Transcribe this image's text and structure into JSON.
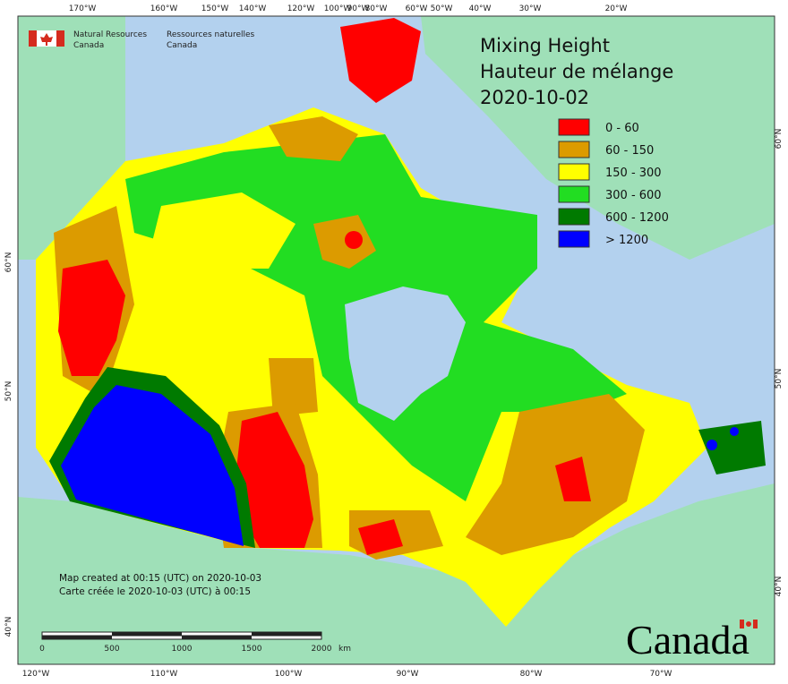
{
  "header": {
    "agency_en": [
      "Natural Resources",
      "Canada"
    ],
    "agency_fr": [
      "Ressources naturelles",
      "Canada"
    ]
  },
  "title": [
    "Mixing Height",
    "Hauteur de mélange",
    "2020-10-02"
  ],
  "legend": {
    "items": [
      {
        "label": "0 - 60",
        "color": "#ff0000"
      },
      {
        "label": "60 - 150",
        "color": "#dc9b00"
      },
      {
        "label": "150 - 300",
        "color": "#ffff00"
      },
      {
        "label": "300 - 600",
        "color": "#22dd22"
      },
      {
        "label": "600 - 1200",
        "color": "#007a00"
      },
      {
        "label": "> 1200",
        "color": "#0000ff"
      }
    ]
  },
  "axes": {
    "top": [
      "170°W",
      "160°W",
      "150°W",
      "140°W",
      "120°W",
      "100°W",
      "90°W",
      "80°W",
      "60°W",
      "50°W",
      "40°W",
      "30°W",
      "20°W"
    ],
    "bottom": [
      "120°W",
      "110°W",
      "100°W",
      "90°W",
      "80°W",
      "70°W"
    ],
    "left": [
      "60°N",
      "50°N",
      "40°N"
    ],
    "right": [
      "60°N",
      "50°N",
      "40°N"
    ]
  },
  "notes": [
    "Map created at 00:15 (UTC) on 2020-10-03",
    "Carte créée le 2020-10-03 (UTC) à 00:15"
  ],
  "scale": {
    "labels": [
      "0",
      "500",
      "1000",
      "1500",
      "2000"
    ],
    "unit": "km"
  },
  "wordmark": "Canada"
}
